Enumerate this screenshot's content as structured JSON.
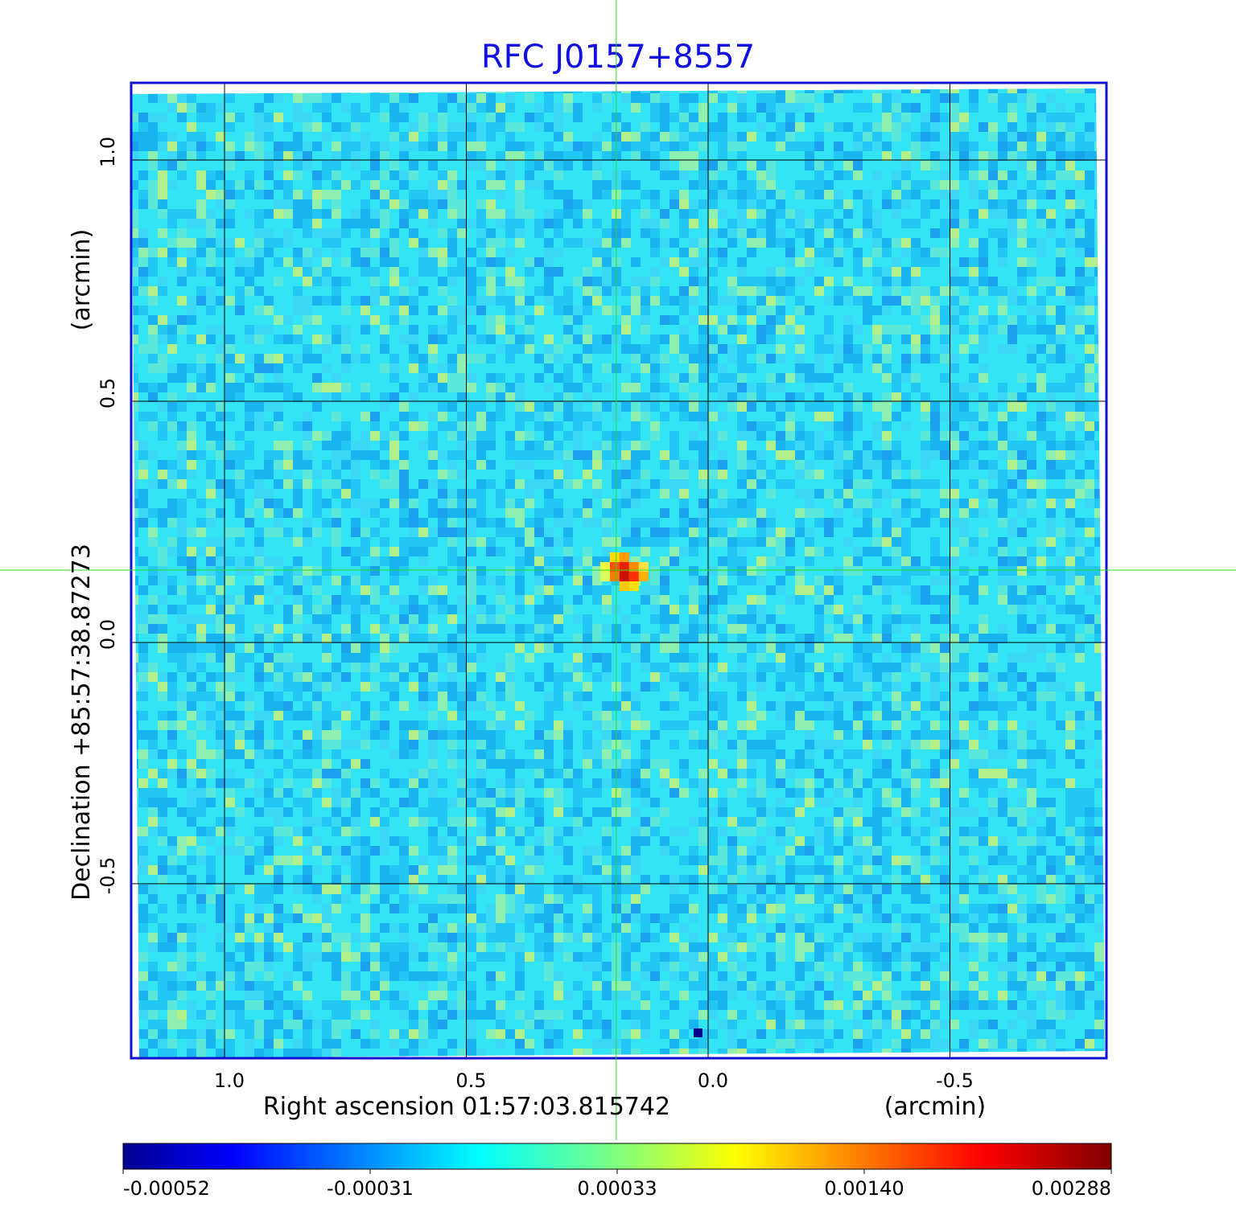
{
  "chart_data": {
    "type": "heatmap",
    "title": "RFC J0157+8557",
    "xlabel": "Right ascension  01:57:03.815742",
    "xunit": "(arcmin)",
    "ylabel": "Declination  +85:57:38.87273",
    "yunit": "(arcmin)",
    "x_ticks": [
      {
        "value": 1.0,
        "label": "1.0"
      },
      {
        "value": 0.5,
        "label": "0.5"
      },
      {
        "value": 0.0,
        "label": "0.0"
      },
      {
        "value": -0.5,
        "label": "-0.5"
      }
    ],
    "y_ticks": [
      {
        "value": 1.0,
        "label": "1.0"
      },
      {
        "value": 0.5,
        "label": "0.5"
      },
      {
        "value": 0.0,
        "label": "0.0"
      },
      {
        "value": -0.5,
        "label": "-0.5"
      }
    ],
    "xlim": [
      1.195,
      -0.82
    ],
    "ylim": [
      -0.86,
      1.16
    ],
    "grid": true,
    "crosshair": {
      "x": 0.19,
      "y": 0.15
    },
    "peak": {
      "x": 0.18,
      "y": 0.15,
      "value": 0.00288
    },
    "minimum_pixel": {
      "x": 0.02,
      "y": -0.81,
      "value": -0.00052
    },
    "colorbar": {
      "colormap": "jet",
      "range": [
        -0.00052,
        0.00288
      ],
      "ticks": [
        "-0.00052",
        "-0.00031",
        "0.00033",
        "0.00140",
        "0.00288"
      ]
    },
    "colors": {
      "frame": "#1010d0",
      "grid": "#000000",
      "crosshair": "#22dd22",
      "background_map": "#33e4f4"
    }
  }
}
